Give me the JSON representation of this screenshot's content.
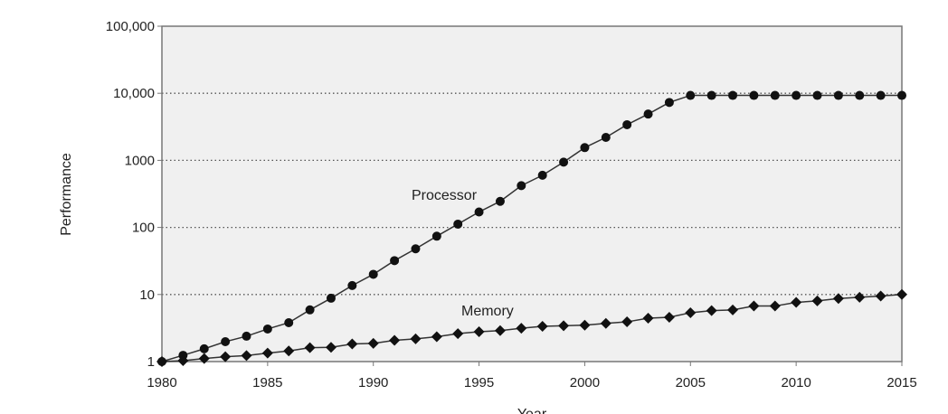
{
  "chart_data": {
    "type": "line",
    "title": "",
    "xlabel": "Year",
    "ylabel": "Performance",
    "xlim": [
      1980,
      2015
    ],
    "ylim": [
      1,
      100000
    ],
    "yscale": "log",
    "x_ticks": [
      "1980",
      "1985",
      "1990",
      "1995",
      "2000",
      "2005",
      "2010",
      "2015"
    ],
    "y_ticks": [
      {
        "value": 1,
        "label": "1"
      },
      {
        "value": 10,
        "label": "10"
      },
      {
        "value": 100,
        "label": "100"
      },
      {
        "value": 1000,
        "label": "1000"
      },
      {
        "value": 10000,
        "label": "10,000"
      },
      {
        "value": 100000,
        "label": "100,000"
      }
    ],
    "grid": "horizontal dotted",
    "plot_background": "#f0f0f0",
    "x": [
      1980,
      1981,
      1982,
      1983,
      1984,
      1985,
      1986,
      1987,
      1988,
      1989,
      1990,
      1991,
      1992,
      1993,
      1994,
      1995,
      1996,
      1997,
      1998,
      1999,
      2000,
      2001,
      2002,
      2003,
      2004,
      2005,
      2006,
      2007,
      2008,
      2009,
      2010,
      2011,
      2012,
      2013,
      2014,
      2015
    ],
    "series": [
      {
        "name": "Processor",
        "marker": "circle",
        "values": [
          1,
          1.24,
          1.55,
          1.98,
          2.39,
          3.06,
          3.8,
          5.9,
          8.8,
          13.6,
          20,
          32,
          48,
          74,
          112,
          170,
          245,
          420,
          600,
          940,
          1550,
          2200,
          3400,
          4900,
          7300,
          9300,
          9300,
          9300,
          9300,
          9300,
          9300,
          9300,
          9300,
          9300,
          9300,
          9300
        ]
      },
      {
        "name": "Memory",
        "marker": "diamond",
        "values": [
          1,
          1.03,
          1.11,
          1.18,
          1.23,
          1.34,
          1.44,
          1.61,
          1.63,
          1.83,
          1.87,
          2.07,
          2.18,
          2.35,
          2.61,
          2.78,
          2.89,
          3.14,
          3.35,
          3.42,
          3.49,
          3.71,
          3.91,
          4.43,
          4.58,
          5.35,
          5.76,
          5.88,
          6.73,
          6.73,
          7.63,
          8.03,
          8.72,
          9.1,
          9.5,
          10
        ]
      }
    ]
  }
}
